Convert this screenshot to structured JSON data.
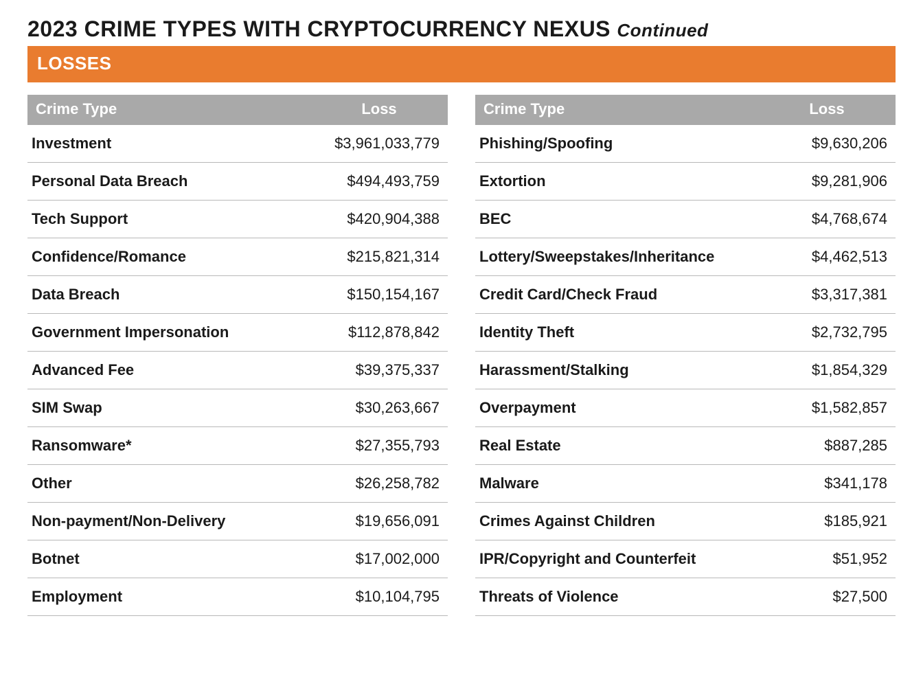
{
  "title_main": "2023 CRIME TYPES WITH CRYPTOCURRENCY NEXUS",
  "title_suffix": "Continued",
  "section_label": "LOSSES",
  "colors": {
    "banner_bg": "#e97c2f",
    "banner_text": "#ffffff",
    "header_bg": "#a9a9a9",
    "header_text": "#ffffff",
    "row_border": "#b8b8b8",
    "body_text": "#1a1a1a",
    "background": "#ffffff"
  },
  "typography": {
    "title_fontsize_pt": 24,
    "section_fontsize_pt": 20,
    "header_fontsize_pt": 17,
    "cell_fontsize_pt": 17,
    "font_family": "Segoe UI / Helvetica Neue"
  },
  "table": {
    "type": "table",
    "columns": [
      "Crime Type",
      "Loss"
    ],
    "column_align": [
      "left",
      "right"
    ],
    "left_rows": [
      {
        "crime_type": "Investment",
        "loss": "$3,961,033,779"
      },
      {
        "crime_type": "Personal Data Breach",
        "loss": "$494,493,759"
      },
      {
        "crime_type": "Tech Support",
        "loss": "$420,904,388"
      },
      {
        "crime_type": "Confidence/Romance",
        "loss": "$215,821,314"
      },
      {
        "crime_type": "Data Breach",
        "loss": "$150,154,167"
      },
      {
        "crime_type": "Government Impersonation",
        "loss": "$112,878,842"
      },
      {
        "crime_type": "Advanced Fee",
        "loss": "$39,375,337"
      },
      {
        "crime_type": "SIM Swap",
        "loss": "$30,263,667"
      },
      {
        "crime_type": "Ransomware*",
        "loss": "$27,355,793"
      },
      {
        "crime_type": "Other",
        "loss": "$26,258,782"
      },
      {
        "crime_type": "Non-payment/Non-Delivery",
        "loss": "$19,656,091"
      },
      {
        "crime_type": "Botnet",
        "loss": "$17,002,000"
      },
      {
        "crime_type": "Employment",
        "loss": "$10,104,795"
      }
    ],
    "right_rows": [
      {
        "crime_type": "Phishing/Spoofing",
        "loss": "$9,630,206"
      },
      {
        "crime_type": "Extortion",
        "loss": "$9,281,906"
      },
      {
        "crime_type": "BEC",
        "loss": "$4,768,674"
      },
      {
        "crime_type": "Lottery/Sweepstakes/Inheritance",
        "loss": "$4,462,513"
      },
      {
        "crime_type": "Credit Card/Check Fraud",
        "loss": "$3,317,381"
      },
      {
        "crime_type": "Identity Theft",
        "loss": "$2,732,795"
      },
      {
        "crime_type": "Harassment/Stalking",
        "loss": "$1,854,329"
      },
      {
        "crime_type": "Overpayment",
        "loss": "$1,582,857"
      },
      {
        "crime_type": "Real Estate",
        "loss": "$887,285"
      },
      {
        "crime_type": "Malware",
        "loss": "$341,178"
      },
      {
        "crime_type": "Crimes Against Children",
        "loss": "$185,921"
      },
      {
        "crime_type": "IPR/Copyright and Counterfeit",
        "loss": "$51,952"
      },
      {
        "crime_type": "Threats of Violence",
        "loss": "$27,500"
      }
    ]
  }
}
